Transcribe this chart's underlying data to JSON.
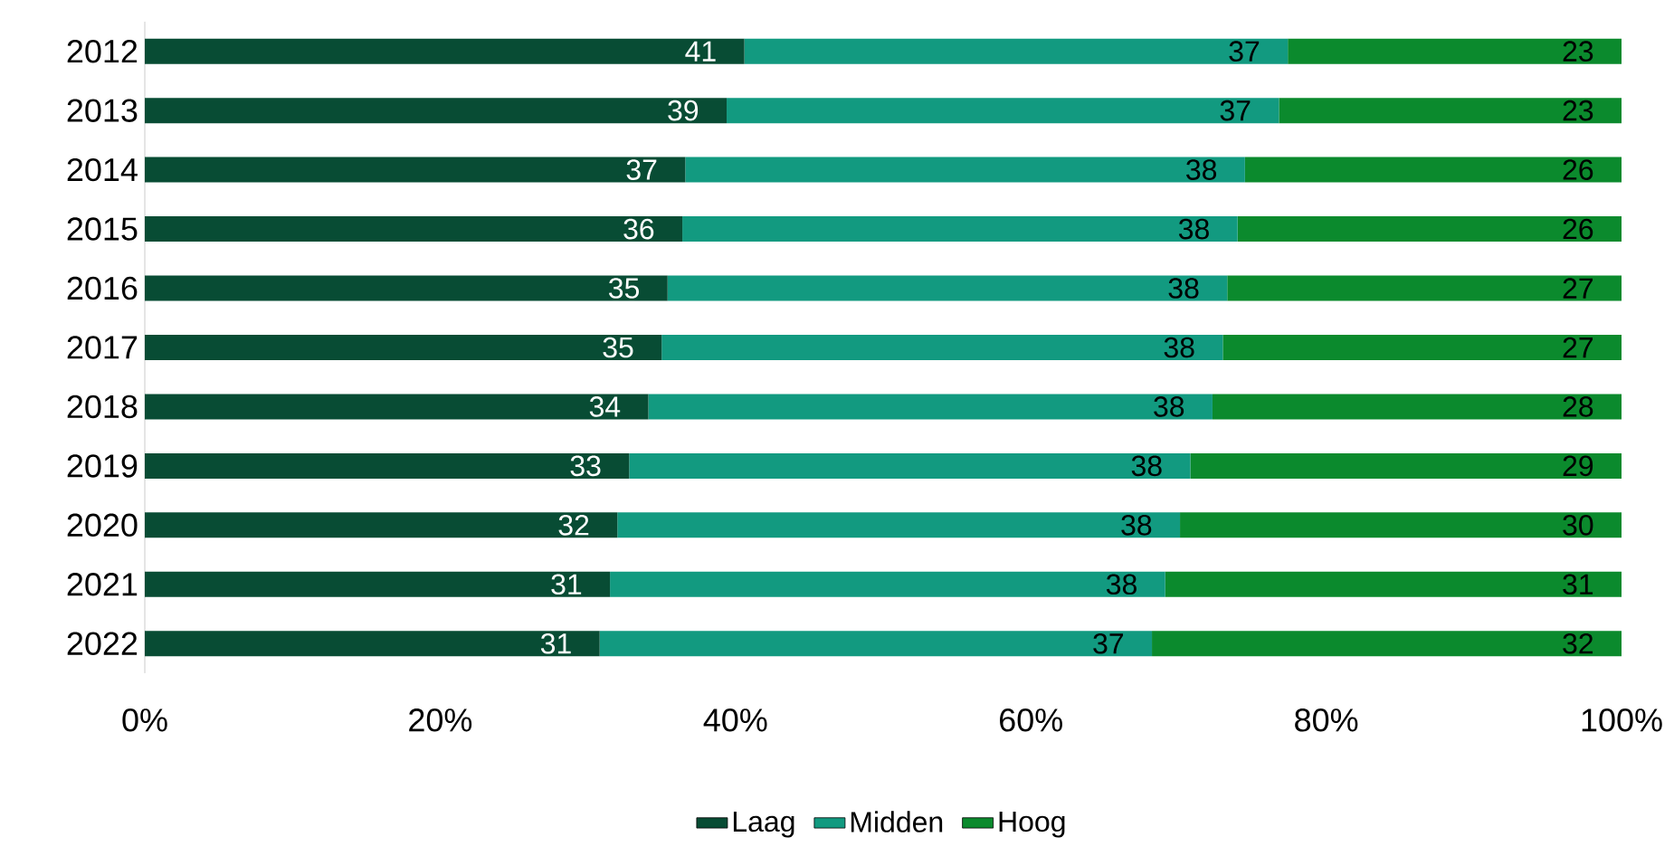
{
  "chart_data": {
    "type": "bar",
    "orientation": "horizontal",
    "stacked": true,
    "legend": "bottom",
    "categories": [
      "2012",
      "2013",
      "2014",
      "2015",
      "2016",
      "2017",
      "2018",
      "2019",
      "2020",
      "2021",
      "2022"
    ],
    "xlim": [
      0,
      100
    ],
    "xticks": [
      {
        "value": 0,
        "label": "0%"
      },
      {
        "value": 20,
        "label": "20%"
      },
      {
        "value": 40,
        "label": "40%"
      },
      {
        "value": 60,
        "label": "60%"
      },
      {
        "value": 80,
        "label": "80%"
      },
      {
        "value": 100,
        "label": "100%"
      }
    ],
    "series": [
      {
        "name": "Laag",
        "color": "#084c34",
        "values": [
          40.6,
          39.4,
          36.6,
          36.4,
          35.4,
          35.0,
          34.1,
          32.8,
          32.0,
          31.5,
          30.8
        ],
        "value_labels": [
          "41",
          "39",
          "37",
          "36",
          "35",
          "35",
          "34",
          "33",
          "32",
          "31",
          "31"
        ]
      },
      {
        "name": "Midden",
        "color": "#129a80",
        "values": [
          36.8,
          37.4,
          37.9,
          37.6,
          37.9,
          38.0,
          38.2,
          38.0,
          38.1,
          37.6,
          37.4
        ],
        "value_labels": [
          "37",
          "37",
          "38",
          "38",
          "38",
          "38",
          "38",
          "38",
          "38",
          "38",
          "37"
        ]
      },
      {
        "name": "Hoog",
        "color": "#0b8a2d",
        "values": [
          22.6,
          23.2,
          25.5,
          26.0,
          26.7,
          27.0,
          27.7,
          29.2,
          29.9,
          30.9,
          31.8
        ],
        "value_labels": [
          "23",
          "23",
          "26",
          "26",
          "27",
          "27",
          "28",
          "29",
          "30",
          "31",
          "32"
        ]
      }
    ]
  }
}
